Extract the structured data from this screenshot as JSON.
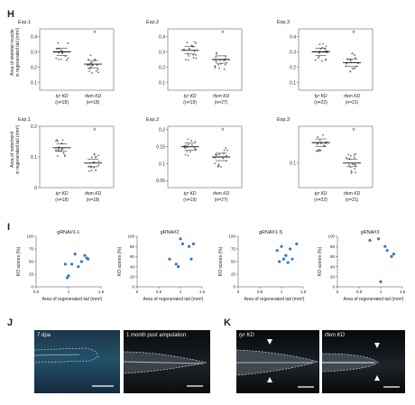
{
  "panel_labels": {
    "h": "H",
    "i": "I",
    "j": "J",
    "k": "K"
  },
  "h_rows": [
    {
      "ylabel_line1": "Area of skeletal muscle",
      "ylabel_line2": "in regenerated tail (mm²)",
      "experiments": [
        {
          "title": "Exp.1",
          "ticks": [
            "0.4",
            "0.3",
            "0.2",
            "0.1"
          ],
          "ymin": 0.05,
          "ymax": 0.45,
          "star": "*",
          "groups": [
            {
              "name": "tyr KD",
              "n": "(n=18)",
              "mean": 0.3
            },
            {
              "name": "rfem KD",
              "n": "(n=18)",
              "mean": 0.22
            }
          ]
        },
        {
          "title": "Exp.2",
          "ticks": [
            "0.4",
            "0.3",
            "0.2",
            "0.1"
          ],
          "ymin": 0.05,
          "ymax": 0.45,
          "star": "*",
          "groups": [
            {
              "name": "tyr KD",
              "n": "(n=19)",
              "mean": 0.31
            },
            {
              "name": "rfem KD",
              "n": "(n=27)",
              "mean": 0.25
            }
          ]
        },
        {
          "title": "Exp.3",
          "ticks": [
            "0.4",
            "0.3",
            "0.2",
            "0.1"
          ],
          "ymin": 0.05,
          "ymax": 0.45,
          "star": "*",
          "groups": [
            {
              "name": "tyr KD",
              "n": "(n=22)",
              "mean": 0.3
            },
            {
              "name": "rfem KD",
              "n": "(n=21)",
              "mean": 0.23
            }
          ]
        }
      ]
    },
    {
      "ylabel_line1": "Area of notochord",
      "ylabel_line2": "in regenerated tail (mm²)",
      "experiments": [
        {
          "title": "Exp.1",
          "ticks": [
            "0.2",
            "0.1",
            "0"
          ],
          "ymin": 0.0,
          "ymax": 0.2,
          "star": "*",
          "groups": [
            {
              "name": "tyr KD",
              "n": "(n=18)",
              "mean": 0.13
            },
            {
              "name": "rfem KD",
              "n": "(n=18)",
              "mean": 0.08
            }
          ]
        },
        {
          "title": "Exp.2",
          "ticks": [
            "0.2",
            "0.15",
            "0.1",
            "0.05"
          ],
          "ymin": 0.03,
          "ymax": 0.21,
          "star": "*",
          "groups": [
            {
              "name": "tyr KD",
              "n": "(n=19)",
              "mean": 0.15
            },
            {
              "name": "rfem KD",
              "n": "(n=27)",
              "mean": 0.12
            }
          ]
        },
        {
          "title": "Exp.3",
          "ticks": [
            "0.1"
          ],
          "ymin": 0.04,
          "ymax": 0.19,
          "star": "*",
          "groups": [
            {
              "name": "tyr KD",
              "n": "(n=22)",
              "mean": 0.15
            },
            {
              "name": "rfem KD",
              "n": "(n=21)",
              "mean": 0.1
            }
          ]
        }
      ]
    }
  ],
  "i_common": {
    "ylabel": "KO scores (%)",
    "xlabel": "Area of regenerated tail (mm²)"
  },
  "chart_data": [
    {
      "type": "scatter",
      "title": "gRNA#1-L",
      "xlabel": "Area of regenerated tail (mm²)",
      "ylabel": "KO scores (%)",
      "xlim": [
        0.5,
        1.5
      ],
      "ylim": [
        0,
        100
      ],
      "xticks": [
        "0.5",
        "1",
        "1.5"
      ],
      "yticks": [
        "0",
        "25",
        "50",
        "75",
        "100"
      ],
      "x": [
        0.95,
        1.05,
        1.1,
        1.15,
        1.2,
        1.25,
        1.3,
        1.28,
        1.0,
        0.98
      ],
      "y": [
        45,
        45,
        65,
        40,
        50,
        62,
        55,
        57,
        22,
        18
      ]
    },
    {
      "type": "scatter",
      "title": "gRNA#2",
      "xlabel": "Area of regenerated tail (mm²)",
      "ylabel": "KO scores (%)",
      "xlim": [
        0,
        1.5
      ],
      "ylim": [
        0,
        100
      ],
      "xticks": [
        "0",
        "0.5",
        "1",
        "1.5"
      ],
      "yticks": [
        "0",
        "20",
        "40",
        "60",
        "80",
        "100"
      ],
      "x": [
        1.0,
        1.05,
        1.2,
        1.3,
        1.25,
        0.75,
        0.9,
        0.95
      ],
      "y": [
        95,
        85,
        80,
        85,
        55,
        55,
        45,
        40
      ]
    },
    {
      "type": "scatter",
      "title": "gRNA#1-S",
      "xlabel": "Area of regenerated tail (mm²)",
      "ylabel": "KO scores (%)",
      "xlim": [
        0,
        1.5
      ],
      "ylim": [
        0,
        100
      ],
      "xticks": [
        "0",
        "0.5",
        "1",
        "1.5"
      ],
      "yticks": [
        "0",
        "25",
        "50",
        "75",
        "100"
      ],
      "x": [
        0.9,
        1.0,
        1.1,
        1.2,
        1.25,
        1.35,
        0.95,
        1.15,
        1.05
      ],
      "y": [
        72,
        80,
        62,
        75,
        55,
        85,
        50,
        48,
        55
      ]
    },
    {
      "type": "scatter",
      "title": "gRNA#3",
      "xlabel": "Area of regenerated tail (mm²)",
      "ylabel": "KO scores (%)",
      "xlim": [
        0,
        1.5
      ],
      "ylim": [
        0,
        100
      ],
      "xticks": [
        "0",
        "0.5",
        "1",
        "1.5"
      ],
      "yticks": [
        "0",
        "20",
        "40",
        "60",
        "80",
        "100"
      ],
      "x": [
        0.75,
        0.95,
        1.1,
        1.15,
        1.25,
        1.3,
        1.0
      ],
      "y": [
        92,
        95,
        80,
        72,
        60,
        65,
        10
      ]
    }
  ],
  "j_images": [
    {
      "label": "7 dpa"
    },
    {
      "label": "1 month post amputation"
    }
  ],
  "k_images": [
    {
      "label": "tyr KD"
    },
    {
      "label": "rfem KD"
    }
  ]
}
